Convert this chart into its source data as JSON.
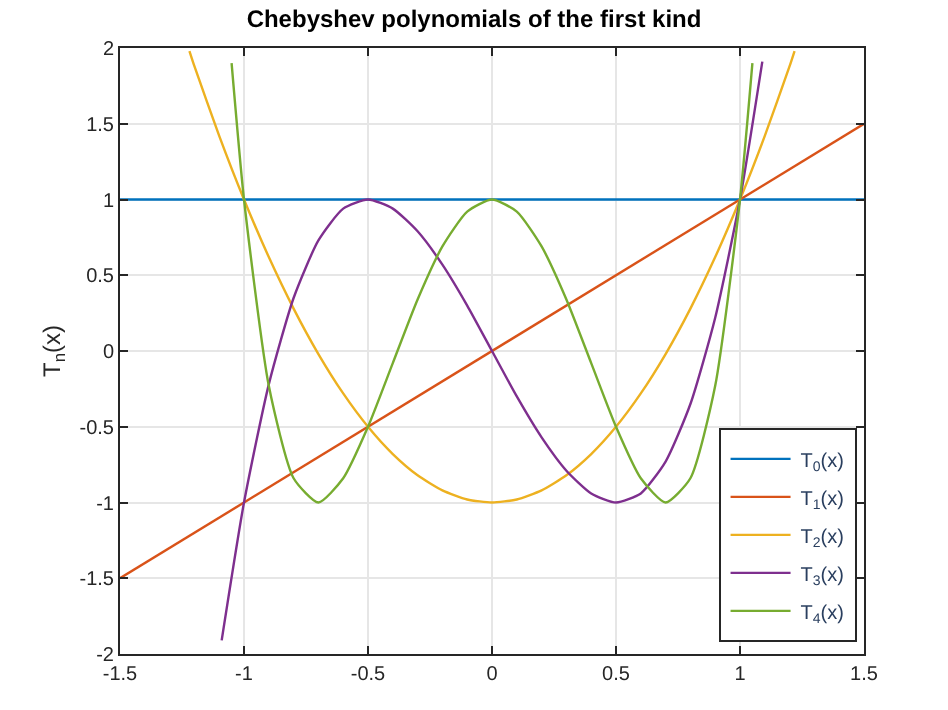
{
  "chart_data": {
    "type": "line",
    "title": "Chebyshev polynomials of the first kind",
    "ylabel": "T$_{n}$(x)",
    "xlim": [
      -1.5,
      1.5
    ],
    "ylim": [
      -2,
      2
    ],
    "xticks": [
      -1.5,
      -1,
      -0.5,
      0,
      0.5,
      1,
      1.5
    ],
    "yticks": [
      -2,
      -1.5,
      -1,
      -0.5,
      0,
      0.5,
      1,
      1.5,
      2
    ],
    "grid": true,
    "legend": "bottom right",
    "line_style": "solid",
    "marker": "none",
    "series": [
      {
        "name": "T$_{0}$(x)",
        "color": "#0072bd",
        "x": [
          -1.5,
          1.5
        ],
        "values": [
          1,
          1
        ]
      },
      {
        "name": "T$_{1}$(x)",
        "color": "#d95319",
        "x": [
          -1.5,
          1.5
        ],
        "values": [
          -1.5,
          1.5
        ]
      },
      {
        "name": "T$_{2}$(x)",
        "color": "#edb120",
        "x": [
          -1.22,
          -1.2,
          -1.1,
          -1,
          -0.9,
          -0.8,
          -0.7,
          -0.6,
          -0.5,
          -0.4,
          -0.3,
          -0.2,
          -0.1,
          0,
          0.1,
          0.2,
          0.3,
          0.4,
          0.5,
          0.6,
          0.7,
          0.8,
          0.9,
          1,
          1.1,
          1.2,
          1.22
        ],
        "values": [
          1.98,
          1.88,
          1.42,
          1,
          0.62,
          0.28,
          -0.02,
          -0.28,
          -0.5,
          -0.68,
          -0.82,
          -0.92,
          -0.98,
          -1,
          -0.98,
          -0.92,
          -0.82,
          -0.68,
          -0.5,
          -0.28,
          -0.02,
          0.28,
          0.62,
          1,
          1.42,
          1.88,
          1.98
        ]
      },
      {
        "name": "T$_{3}$(x)",
        "color": "#7e2f8e",
        "x": [
          -1.09,
          -1,
          -0.9,
          -0.8,
          -0.7,
          -0.6,
          -0.5,
          -0.4,
          -0.3,
          -0.2,
          -0.1,
          0,
          0.1,
          0.2,
          0.3,
          0.4,
          0.5,
          0.6,
          0.7,
          0.8,
          0.9,
          1,
          1.09
        ],
        "values": [
          -1.91,
          -1,
          -0.22,
          0.35,
          0.73,
          0.94,
          1,
          0.94,
          0.79,
          0.57,
          0.3,
          0,
          -0.3,
          -0.57,
          -0.79,
          -0.94,
          -1,
          -0.94,
          -0.73,
          -0.35,
          0.22,
          1,
          1.91
        ]
      },
      {
        "name": "T$_{4}$(x)",
        "color": "#77ac30",
        "x": [
          -1.05,
          -1,
          -0.9,
          -0.8,
          -0.7,
          -0.6,
          -0.5,
          -0.4,
          -0.3,
          -0.2,
          -0.1,
          0,
          0.1,
          0.2,
          0.3,
          0.4,
          0.5,
          0.6,
          0.7,
          0.8,
          0.9,
          1,
          1.05
        ],
        "values": [
          1.9,
          1,
          -0.23,
          -0.84,
          -1,
          -0.84,
          -0.5,
          -0.08,
          0.34,
          0.69,
          0.92,
          1,
          0.92,
          0.69,
          0.34,
          -0.08,
          -0.5,
          -0.84,
          -1,
          -0.84,
          -0.23,
          1,
          1.9
        ]
      }
    ]
  }
}
